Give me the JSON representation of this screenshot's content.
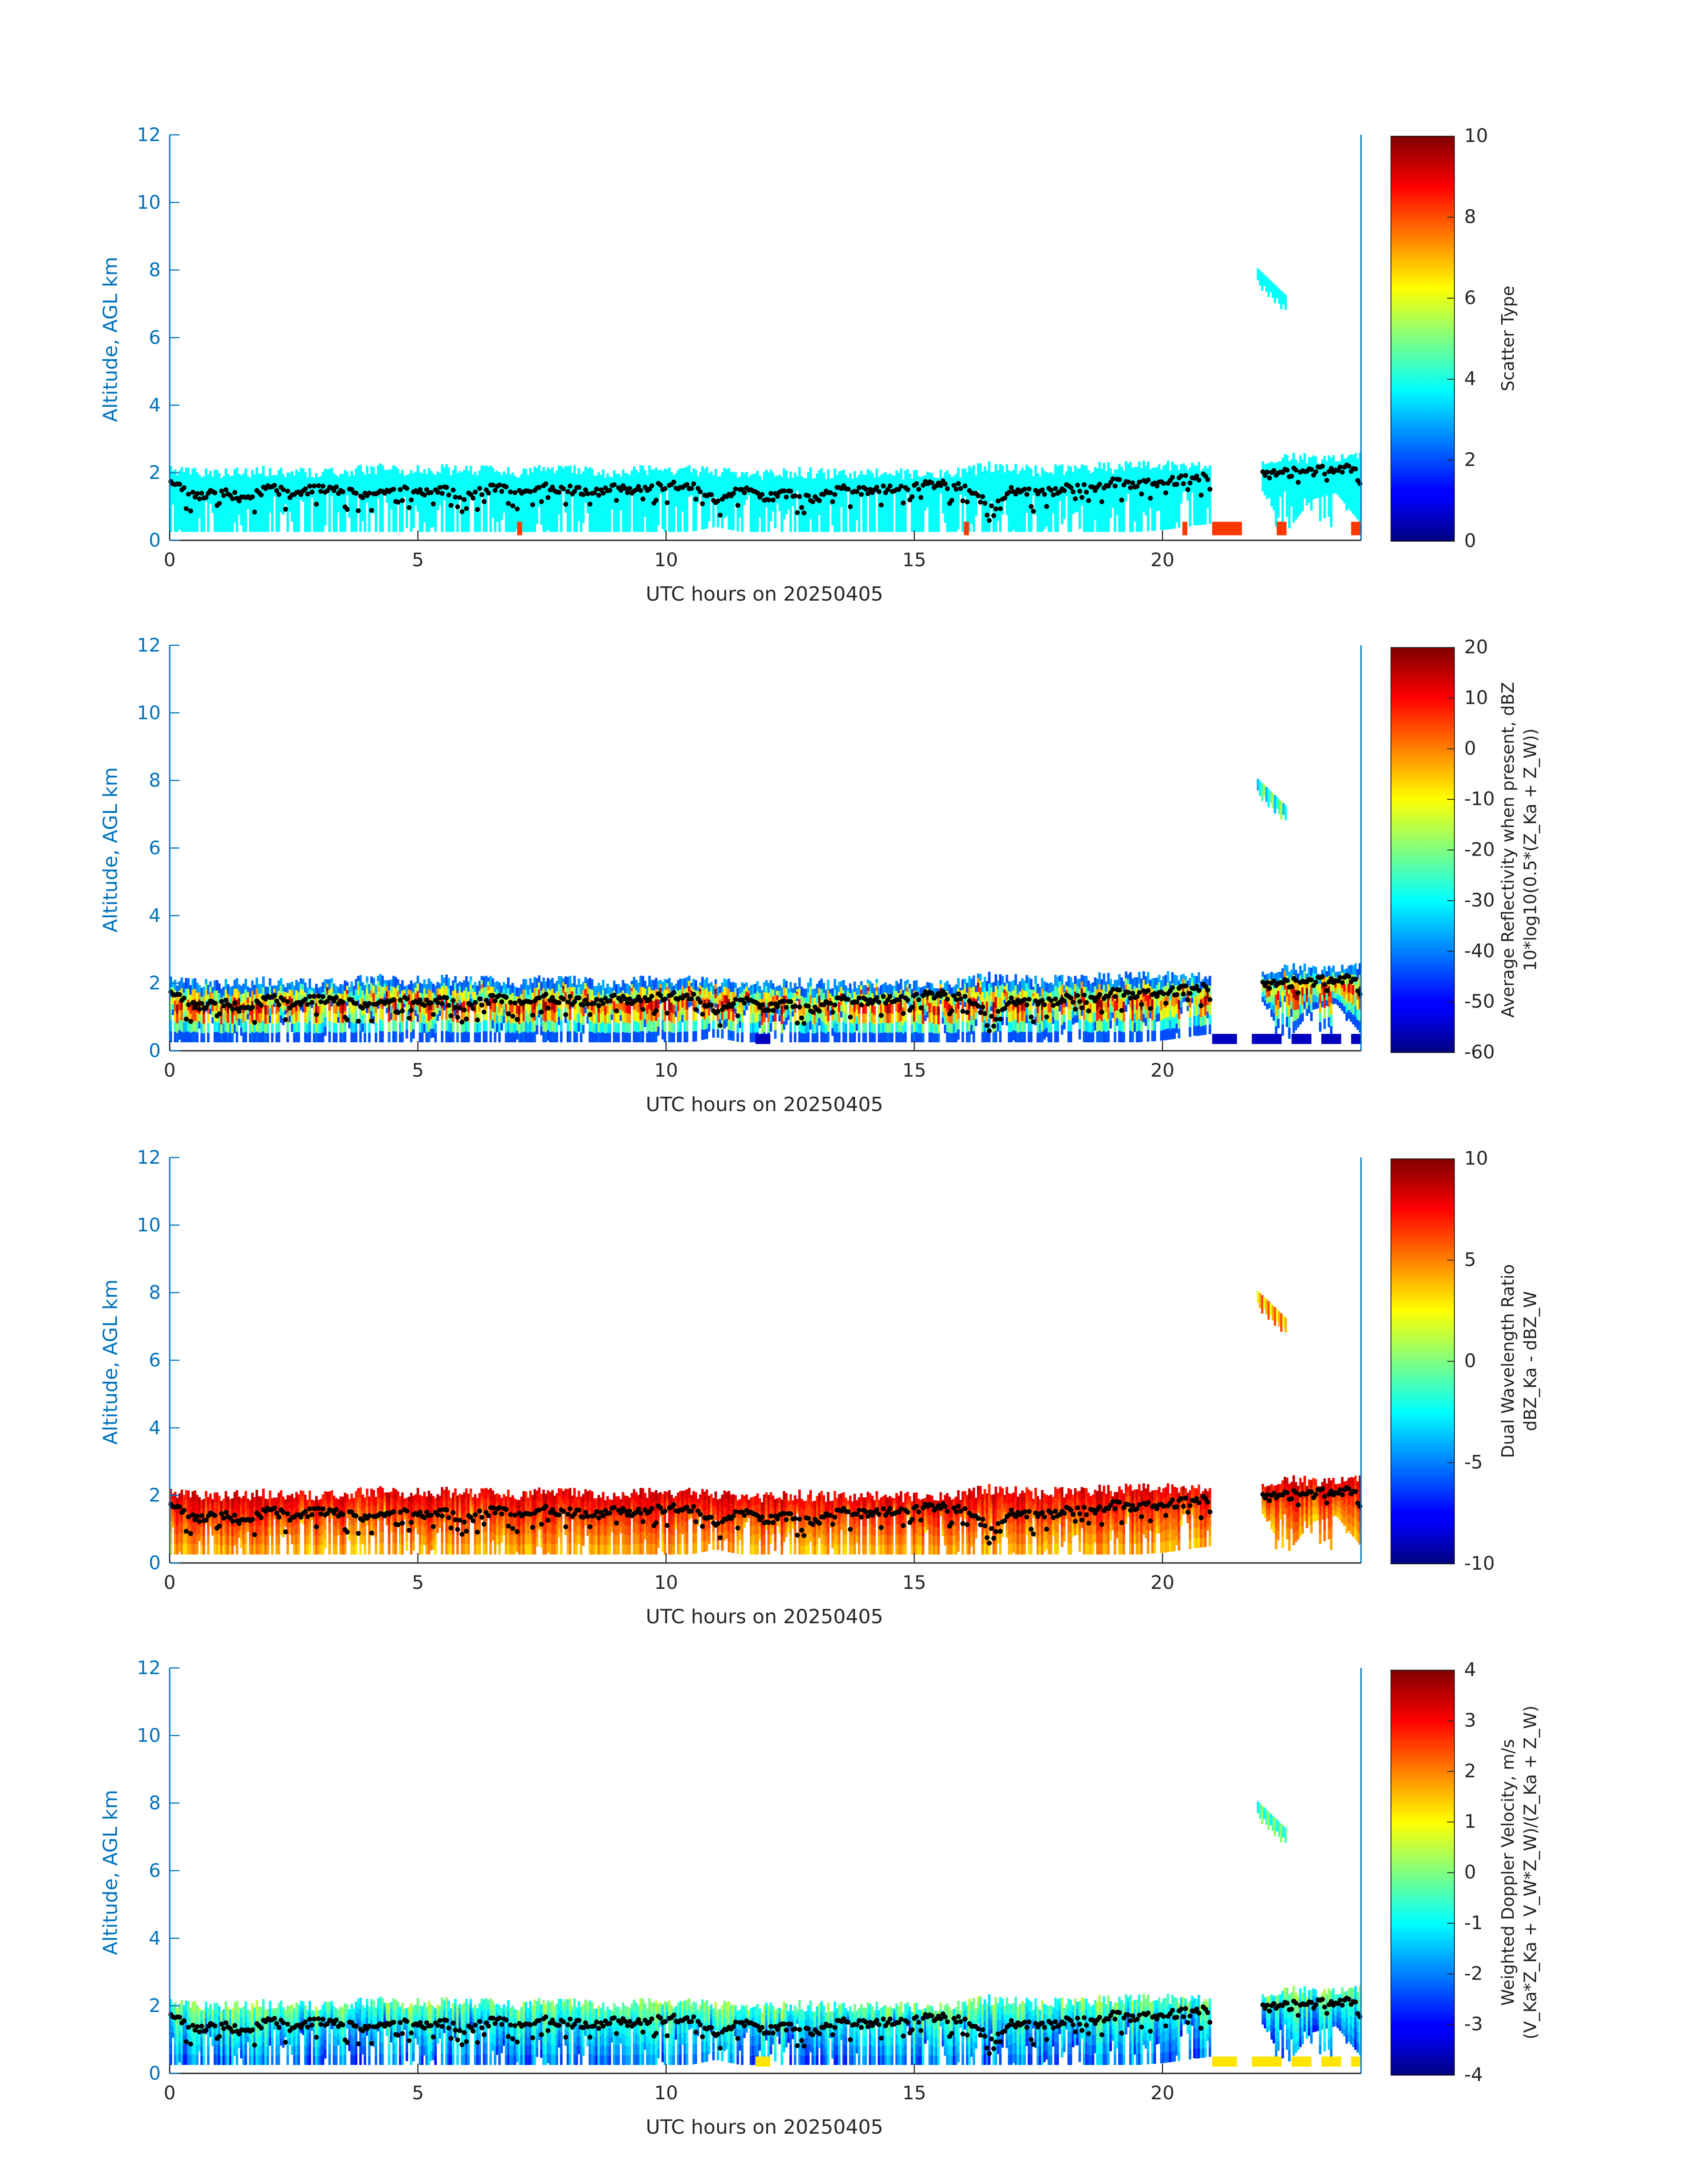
{
  "colors": {
    "axis_blue": "#0072BD",
    "text_dark": "#262626",
    "colormap": "jet",
    "lidar_points": "#000000"
  },
  "chart_data": [
    {
      "type": "heatmap",
      "name": "scatter-type",
      "xlabel": "UTC hours on 20250405",
      "ylabel": "Altitude, AGL km",
      "xlim": [
        0,
        24
      ],
      "ylim": [
        0,
        12
      ],
      "xticks": [
        0,
        5,
        10,
        15,
        20
      ],
      "yticks": [
        0,
        2,
        4,
        6,
        8,
        10,
        12
      ],
      "colorbar": {
        "label_lines": [
          "Scatter Type"
        ],
        "range": [
          0,
          10
        ],
        "ticks": [
          0,
          2,
          4,
          6,
          8,
          10
        ]
      },
      "field_value": 3.8,
      "low_value": 8.2,
      "low_value_hours": [
        [
          7.0,
          7.1
        ],
        [
          16.0,
          16.1
        ],
        [
          20.4,
          20.5
        ],
        [
          21.0,
          21.6
        ],
        [
          22.3,
          22.5
        ],
        [
          23.8,
          24.0
        ]
      ]
    },
    {
      "type": "heatmap",
      "name": "average-reflectivity",
      "xlabel": "UTC hours on 20250405",
      "ylabel": "Altitude, AGL km",
      "xlim": [
        0,
        24
      ],
      "ylim": [
        0,
        12
      ],
      "xticks": [
        0,
        5,
        10,
        15,
        20
      ],
      "yticks": [
        0,
        2,
        4,
        6,
        8,
        10,
        12
      ],
      "colorbar": {
        "label_lines": [
          "Average Reflectivity when present, dBZ",
          "10*log10(0.5*(Z_Ka + Z_W))"
        ],
        "range": [
          -60,
          20
        ],
        "ticks": [
          -60,
          -50,
          -40,
          -30,
          -20,
          -10,
          0,
          10,
          20
        ]
      },
      "field_range": [
        -55,
        18
      ],
      "low_value": -55
    },
    {
      "type": "heatmap",
      "name": "dual-wavelength-ratio",
      "xlabel": "UTC hours on 20250405",
      "ylabel": "Altitude, AGL km",
      "xlim": [
        0,
        24
      ],
      "ylim": [
        0,
        12
      ],
      "xticks": [
        0,
        5,
        10,
        15,
        20
      ],
      "yticks": [
        0,
        2,
        4,
        6,
        8,
        10,
        12
      ],
      "colorbar": {
        "label_lines": [
          "Dual Wavelength Ratio",
          "dBZ_Ka - dBZ_W"
        ],
        "range": [
          -10,
          10
        ],
        "ticks": [
          -10,
          -5,
          0,
          5,
          10
        ]
      },
      "field_range": [
        1,
        9
      ]
    },
    {
      "type": "heatmap",
      "name": "weighted-doppler-velocity",
      "xlabel": "UTC hours on 20250405",
      "ylabel": "Altitude, AGL km",
      "xlim": [
        0,
        24
      ],
      "ylim": [
        0,
        12
      ],
      "xticks": [
        0,
        5,
        10,
        15,
        20
      ],
      "yticks": [
        0,
        2,
        4,
        6,
        8,
        10,
        12
      ],
      "colorbar": {
        "label_lines": [
          "Weighted Doppler Velocity, m/s",
          "(V_Ka*Z_Ka + V_W*Z_W)/(Z_Ka + Z_W)"
        ],
        "range": [
          -4,
          4
        ],
        "ticks": [
          -4,
          -3,
          -2,
          -1,
          0,
          1,
          2,
          3,
          4
        ]
      },
      "field_range": [
        -3.2,
        0.8
      ],
      "low_value": 1.2
    }
  ],
  "shared_data": {
    "hours": [
      0,
      0.5,
      1,
      1.5,
      2,
      2.5,
      3,
      3.5,
      4,
      4.5,
      5,
      5.5,
      6,
      6.5,
      7,
      7.5,
      8,
      8.5,
      9,
      9.5,
      10,
      10.5,
      11,
      11.5,
      12,
      12.5,
      13,
      13.5,
      14,
      14.5,
      15,
      15.5,
      16,
      16.5,
      17,
      17.5,
      18,
      18.5,
      19,
      19.5,
      20,
      20.5,
      21,
      21.5,
      22,
      22.5,
      23,
      23.5,
      24
    ],
    "cloud_top_km": [
      2.1,
      2.05,
      2.0,
      2.0,
      2.05,
      2.0,
      2.0,
      2.05,
      2.1,
      2.1,
      2.05,
      2.1,
      2.05,
      2.05,
      2.0,
      2.1,
      2.1,
      2.05,
      2.0,
      2.05,
      2.1,
      2.05,
      2.0,
      1.95,
      1.95,
      2.0,
      2.0,
      1.95,
      2.0,
      2.0,
      1.95,
      2.0,
      2.0,
      2.2,
      2.1,
      2.05,
      2.1,
      2.15,
      2.15,
      2.2,
      2.2,
      2.25,
      2.2,
      null,
      2.3,
      2.5,
      2.4,
      2.5,
      2.55
    ],
    "cloud_base_km": [
      0.25,
      0.25,
      0.25,
      0.25,
      0.25,
      0.25,
      0.25,
      0.25,
      0.25,
      0.25,
      0.25,
      0.25,
      0.25,
      0.25,
      0.25,
      0.25,
      0.25,
      0.25,
      0.25,
      0.25,
      0.25,
      0.25,
      0.4,
      0.25,
      0.25,
      0.25,
      0.25,
      0.25,
      0.25,
      0.25,
      0.25,
      0.25,
      0.25,
      0.25,
      0.25,
      0.25,
      0.25,
      0.25,
      0.25,
      0.25,
      0.3,
      0.4,
      0.5,
      null,
      1.5,
      0.25,
      1.2,
      1.4,
      0.5
    ],
    "lidar_base_km": [
      1.7,
      1.3,
      1.45,
      1.2,
      1.55,
      1.35,
      1.55,
      1.45,
      1.35,
      1.55,
      1.45,
      1.5,
      1.3,
      1.55,
      1.45,
      1.6,
      1.5,
      1.4,
      1.55,
      1.5,
      1.6,
      1.65,
      1.2,
      1.5,
      1.25,
      1.4,
      1.2,
      1.55,
      1.45,
      1.5,
      1.6,
      1.65,
      1.55,
      1.1,
      1.5,
      1.35,
      1.55,
      1.55,
      1.7,
      1.65,
      1.75,
      1.8,
      1.9,
      null,
      1.9,
      2.0,
      2.05,
      2.1,
      2.15
    ],
    "cirrus": {
      "hours": [
        21.9,
        22.5
      ],
      "top_km": 8.05,
      "base_km": 7.0
    }
  }
}
